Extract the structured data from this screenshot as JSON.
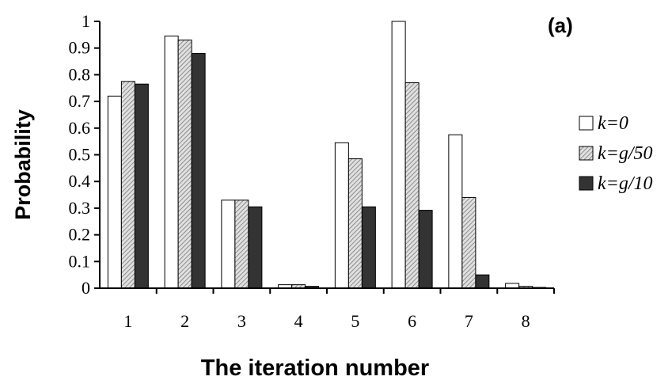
{
  "chart_data": {
    "type": "bar",
    "title": "",
    "panel_label": "(a)",
    "xlabel": "The iteration number",
    "ylabel": "Probability",
    "categories": [
      "1",
      "2",
      "3",
      "4",
      "5",
      "6",
      "7",
      "8"
    ],
    "ylim": [
      0,
      1
    ],
    "yticks": [
      "0",
      "0.1",
      "0.2",
      "0.3",
      "0.4",
      "0.5",
      "0.6",
      "0.7",
      "0.8",
      "0.9",
      "1"
    ],
    "grid": false,
    "legend_position": "right",
    "series": [
      {
        "name": "k=0",
        "fill": "white",
        "values": [
          0.72,
          0.945,
          0.33,
          0.013,
          0.545,
          1.0,
          0.575,
          0.018
        ]
      },
      {
        "name": "k=g/50",
        "fill": "hatched-gray",
        "values": [
          0.775,
          0.93,
          0.33,
          0.013,
          0.485,
          0.77,
          0.34,
          0.007
        ]
      },
      {
        "name": "k=g/10",
        "fill": "dark-gray",
        "values": [
          0.765,
          0.88,
          0.305,
          0.007,
          0.305,
          0.292,
          0.05,
          0.003
        ]
      }
    ],
    "colors": {
      "k=0": "#ffffff",
      "k=g/50": "#d0d0d0",
      "k=g/10": "#333333",
      "stroke": "#000000"
    }
  }
}
